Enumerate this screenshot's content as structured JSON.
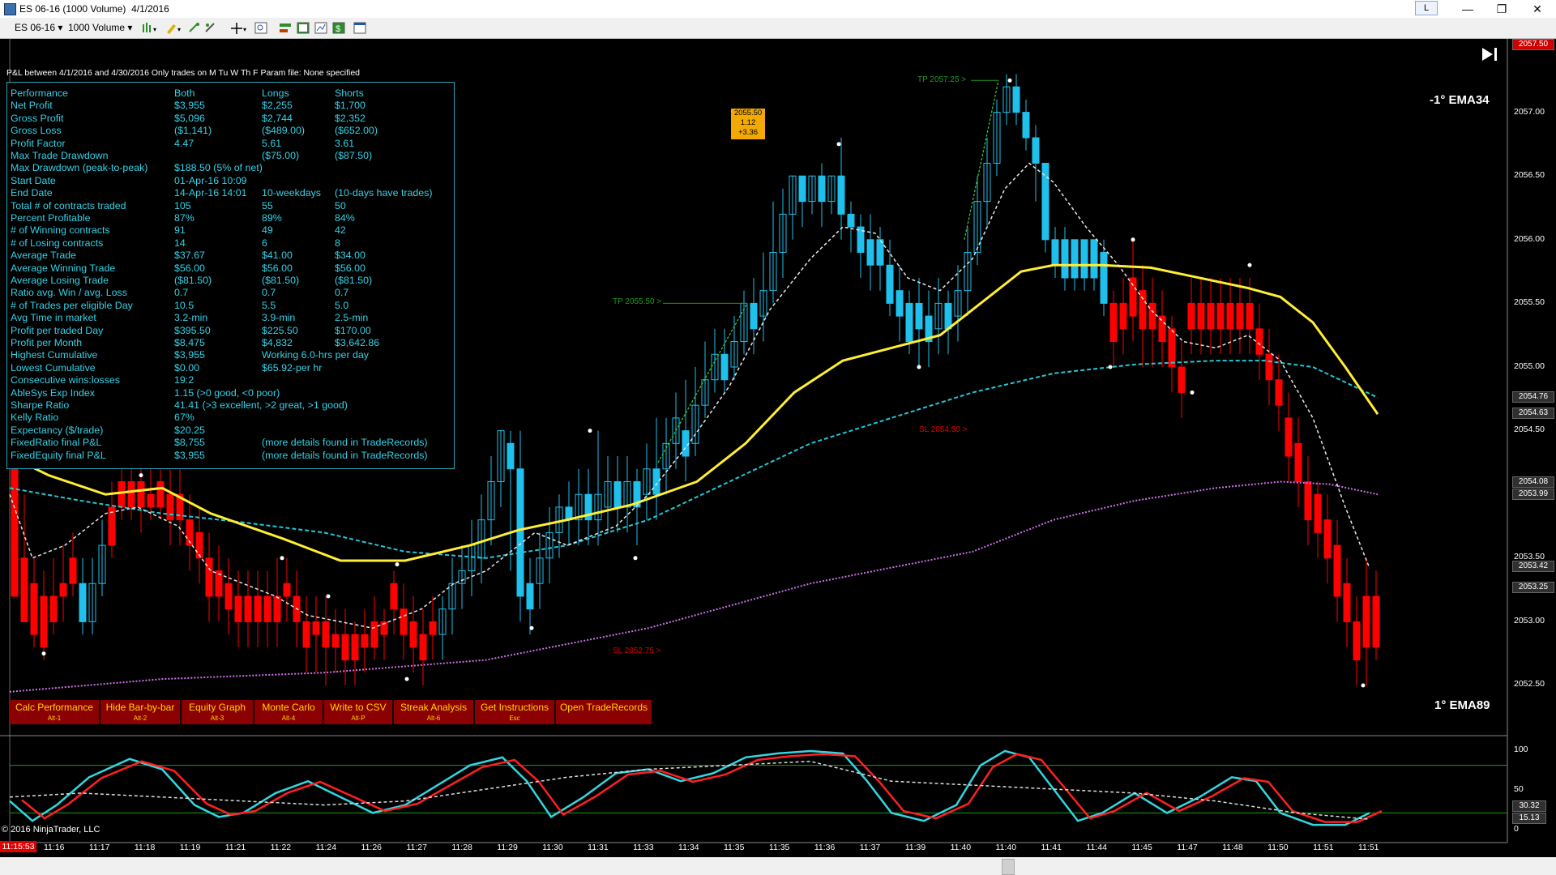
{
  "window": {
    "title": "ES 06-16 (1000 Volume)  4/1/2016",
    "l_button": "L",
    "minimize": "—",
    "restore": "❐",
    "close": "✕"
  },
  "toolbar": {
    "instrument": "ES 06-16",
    "interval": "1000 Volume"
  },
  "header": {
    "text": "P&L between 4/1/2016 and 4/30/2016  Only trades on M Tu W Th F   Param file: None specified"
  },
  "performance": {
    "columns": [
      "Performance",
      "Both",
      "Longs",
      "Shorts"
    ],
    "rows": [
      [
        "Net Profit",
        "$3,955",
        "$2,255",
        "$1,700"
      ],
      [
        "Gross Profit",
        "$5,096",
        "$2,744",
        "$2,352"
      ],
      [
        "Gross Loss",
        "($1,141)",
        "($489.00)",
        "($652.00)"
      ],
      [
        "Profit Factor",
        "4.47",
        "5.61",
        "3.61"
      ],
      [
        "Max Trade Drawdown",
        "",
        "($75.00)",
        "($87.50)"
      ],
      [
        "Max Drawdown (peak-to-peak)",
        "$188.50 (5% of net)",
        "",
        ""
      ],
      [
        "Start Date",
        "01-Apr-16 10:09",
        "",
        ""
      ],
      [
        "End Date",
        "14-Apr-16 14:01",
        "10-weekdays",
        "(10-days have trades)"
      ],
      [
        "Total # of contracts traded",
        "105",
        "55",
        "50"
      ],
      [
        "Percent Profitable",
        "87%",
        "89%",
        "84%"
      ],
      [
        "# of Winning contracts",
        "91",
        "49",
        "42"
      ],
      [
        "# of Losing contracts",
        "14",
        "6",
        "8"
      ],
      [
        "Average Trade",
        "$37.67",
        "$41.00",
        "$34.00"
      ],
      [
        "Average Winning Trade",
        "$56.00",
        "$56.00",
        "$56.00"
      ],
      [
        "Average Losing Trade",
        "($81.50)",
        "($81.50)",
        "($81.50)"
      ],
      [
        "Ratio avg. Win / avg. Loss",
        "0.7",
        "0.7",
        "0.7"
      ],
      [
        "# of Trades per eligible Day",
        "10.5",
        "5.5",
        "5.0"
      ],
      [
        "Avg Time in market",
        "3.2-min",
        "3.9-min",
        "2.5-min"
      ],
      [
        "Profit per traded Day",
        "$395.50",
        "$225.50",
        "$170.00"
      ],
      [
        "Profit per Month",
        "$8,475",
        "$4,832",
        "$3,642.86"
      ],
      [
        "Highest Cumulative",
        "$3,955",
        "Working 6.0-hrs per day",
        ""
      ],
      [
        "Lowest Cumulative",
        "$0.00",
        "$65.92-per hr",
        ""
      ],
      [
        "Consecutive wins:losses",
        "19:2",
        "",
        ""
      ],
      [
        "AbleSys Exp Index",
        "1.15 (>0 good, <0 poor)",
        "",
        ""
      ],
      [
        "Sharpe Ratio",
        "41.41 (>3 excellent, >2 great, >1 good)",
        "",
        ""
      ],
      [
        "Kelly Ratio",
        "67%",
        "",
        ""
      ],
      [
        "Expectancy ($/trade)",
        "$20.25",
        "",
        ""
      ],
      [
        "FixedRatio final P&L",
        "$8,755",
        "  (more details found in TradeRecords)",
        ""
      ],
      [
        "FixedEquity final P&L",
        "$3,955",
        "  (more details found in TradeRecords)",
        ""
      ]
    ]
  },
  "buttons": [
    {
      "label": "Calc Performance",
      "key": "Alt-1"
    },
    {
      "label": "Hide Bar-by-bar",
      "key": "Alt-2"
    },
    {
      "label": "Equity Graph",
      "key": "Alt-3"
    },
    {
      "label": "Monte Carlo",
      "key": "Alt-4"
    },
    {
      "label": "Write to CSV",
      "key": "Alt-P"
    },
    {
      "label": "Streak Analysis",
      "key": "Alt-6"
    },
    {
      "label": "Get Instructions",
      "key": "Esc"
    },
    {
      "label": "Open TradeRecords",
      "key": ""
    }
  ],
  "labels": {
    "ema34": "-1° EMA34",
    "ema89": "1° EMA89",
    "copyright": "© 2016 NinjaTrader, LLC",
    "current_time": "11:15:53",
    "marker_box": [
      "2055.50",
      "1.12",
      "+3.36"
    ],
    "tp1": "TP 2057.25 >",
    "tp2": "TP 2055.50 >",
    "sl1": "SL 2054.50 >",
    "sl2": "SL 2052.75 >"
  },
  "price_axis": [
    "2057.50",
    "2057.00",
    "2056.50",
    "2056.00",
    "2055.50",
    "2055.00",
    "2054.50",
    "2054.00",
    "2053.50",
    "2053.00",
    "2052.50"
  ],
  "price_tags": [
    {
      "text": "2057.50",
      "bg": "#d00000",
      "fg": "#ffffff"
    },
    {
      "text": "2054.76",
      "bg": "#303030",
      "fg": "#ffffff"
    },
    {
      "text": "2054.63",
      "bg": "#303030",
      "fg": "#ffffff"
    },
    {
      "text": "2054.08",
      "bg": "#303030",
      "fg": "#ffffff"
    },
    {
      "text": "2053.99",
      "bg": "#303030",
      "fg": "#ffffff"
    },
    {
      "text": "2053.42",
      "bg": "#303030",
      "fg": "#ffffff"
    },
    {
      "text": "2053.25",
      "bg": "#303030",
      "fg": "#ffffff"
    }
  ],
  "osc_axis": [
    "100",
    "50",
    "0"
  ],
  "osc_tags": [
    "30.32",
    "15.13"
  ],
  "time_axis": [
    "11:16",
    "11:17",
    "11:18",
    "11:19",
    "11:21",
    "11:22",
    "11:24",
    "11:26",
    "11:27",
    "11:28",
    "11:29",
    "11:30",
    "11:31",
    "11:33",
    "11:34",
    "11:35",
    "11:35",
    "11:36",
    "11:37",
    "11:39",
    "11:40",
    "11:40",
    "11:41",
    "11:44",
    "11:45",
    "11:47",
    "11:48",
    "11:50",
    "11:51",
    "11:51"
  ],
  "colors": {
    "up": "#1fc1ec",
    "down": "#ff0000",
    "ema_yellow": "#ffee33",
    "ema_cyan": "#23c8d8",
    "ema_magenta": "#d070e8",
    "fast_line": "#e8e8e8"
  }
}
